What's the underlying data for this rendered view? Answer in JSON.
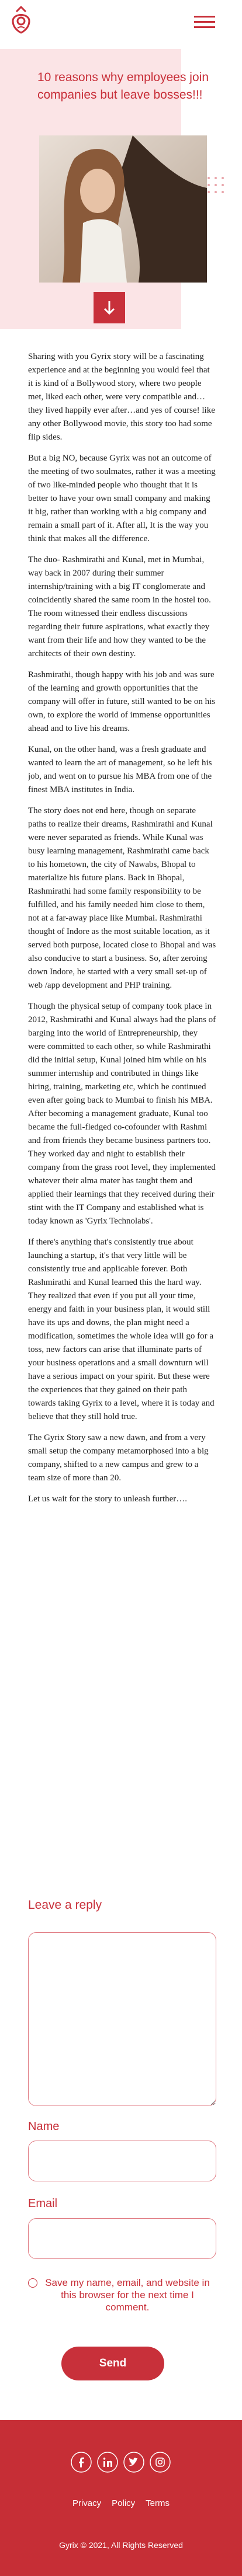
{
  "header": {
    "brand": "Gyrix"
  },
  "hero": {
    "title": "10 reasons why employees join companies but leave bosses!!!"
  },
  "article": {
    "paragraphs": [
      "Sharing with you Gyrix story will be a fascinating experience and at the beginning you would feel that it is kind of a Bollywood story, where two people met, liked each other, were very compatible and…they lived happily ever after…and yes of course! like any other Bollywood movie, this story too had some flip sides.",
      "But a big NO, because Gyrix was not an outcome of the meeting of two soulmates, rather it was a meeting of two like-minded people who thought that it is better to have your own small company and making it big, rather than working with a big company and remain a small part of it. After all, It is the way you think that makes all the difference.",
      "The duo- Rashmirathi and Kunal, met in Mumbai, way back in 2007 during their summer internship/training with a big IT conglomerate and coincidently shared the same room in the hostel too. The room witnessed their endless discussions regarding their future aspirations, what exactly they want from their life and how they wanted to be the architects of their own destiny.",
      "Rashmirathi, though happy with his job and was sure of the learning and growth opportunities that the company will offer in future, still wanted to be on his own, to explore the world of immense opportunities ahead and to live his dreams.",
      "Kunal, on the other hand, was a fresh graduate and wanted to learn the art of management, so he left his job, and went on to pursue his MBA from one of the finest MBA institutes in India.",
      "The story does not end here, though on separate paths to realize their dreams, Rashmirathi and Kunal were never separated as friends. While Kunal was busy learning management, Rashmirathi came back to his hometown, the city of Nawabs, Bhopal to materialize his future plans. Back in Bhopal, Rashmirathi had some family responsibility to be fulfilled, and his family needed him close to them, not at a far-away place like Mumbai. Rashmirathi thought of Indore as the most suitable location, as it served both purpose, located close to Bhopal and was also conducive to start a business. So, after zeroing down Indore, he started with a very small set-up of web /app development and PHP training.",
      "Though the physical setup of company took place in 2012, Rashmirathi and Kunal always had the plans of barging into the world of Entrepreneurship, they were committed to each other, so while Rashmirathi did the initial setup, Kunal joined him while on his summer internship and contributed in things like hiring, training, marketing etc, which he continued even after going back to Mumbai to finish his MBA. After becoming a management graduate, Kunal too became the full-fledged co-cofounder with Rashmi and from friends they became business partners too. They worked day and night to establish their company from the grass root level, they implemented whatever their alma mater has taught them and applied their learnings that they received during their stint with the IT Company and established what is today known as 'Gyrix Technolabs'.",
      "If there's anything that's consistently true about launching a startup, it's that very little will be consistently true and applicable forever. Both Rashmirathi and Kunal learned this the hard way. They realized that even if you put all your time, energy and faith in your business plan, it would still have its ups and downs, the plan might need a modification, sometimes the whole idea will go for a toss, new factors can arise that illuminate parts of your business operations and a small downturn will have a serious impact on your spirit. But these were the experiences that they gained on their path towards taking Gyrix to a level, where it is today and believe that they still hold true.",
      "The Gyrix Story saw a new dawn, and from a very small setup the company metamorphosed into a big company, shifted to a new campus and grew to a team size of more than 20.",
      "Let us wait for the story to unleash further…."
    ]
  },
  "comment_form": {
    "heading": "Leave a reply",
    "name_label": "Name",
    "email_label": "Email",
    "remember_label": "Save my name, email, and website in this browser for the next time I comment.",
    "submit": "Send"
  },
  "footer": {
    "links": [
      "Privacy",
      "Policy",
      "Terms"
    ],
    "copyright": "Gyrix © 2021, All Rights Reserved"
  }
}
